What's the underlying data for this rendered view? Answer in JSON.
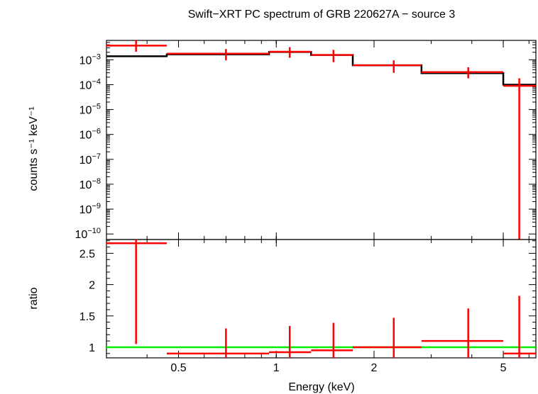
{
  "chart_data": [
    {
      "type": "scatter",
      "title": "Swift−XRT PC spectrum of GRB 220627A − source 3",
      "ylabel": "counts s⁻¹ keV⁻¹",
      "xlabel": "",
      "x_scale": "log",
      "y_scale": "log",
      "xlim": [
        0.3,
        6.3
      ],
      "ylim": [
        6e-11,
        0.006
      ],
      "y_ticks": [
        {
          "exp": -3,
          "label_base": "10",
          "label_exp": "−3"
        },
        {
          "exp": -4,
          "label_base": "10",
          "label_exp": "−4"
        },
        {
          "exp": -5,
          "label_base": "10",
          "label_exp": "−5"
        },
        {
          "exp": -6,
          "label_base": "10",
          "label_exp": "−6"
        },
        {
          "exp": -7,
          "label_base": "10",
          "label_exp": "−7"
        },
        {
          "exp": -8,
          "label_base": "10",
          "label_exp": "−8"
        },
        {
          "exp": -9,
          "label_base": "10",
          "label_exp": "−9"
        },
        {
          "exp": -10,
          "label_base": "10",
          "label_exp": "−10"
        }
      ],
      "series": [
        {
          "color": "#ff0000",
          "points": [
            {
              "x": 0.37,
              "xlo": 0.3,
              "xhi": 0.46,
              "y": 0.0037,
              "ylo": 0.0021,
              "yhi": 0.006
            },
            {
              "x": 0.7,
              "xlo": 0.46,
              "xhi": 0.95,
              "y": 0.00175,
              "ylo": 0.00095,
              "yhi": 0.0027
            },
            {
              "x": 1.1,
              "xlo": 0.95,
              "xhi": 1.28,
              "y": 0.0021,
              "ylo": 0.0012,
              "yhi": 0.0032
            },
            {
              "x": 1.5,
              "xlo": 1.28,
              "xhi": 1.72,
              "y": 0.00155,
              "ylo": 0.0008,
              "yhi": 0.0025
            },
            {
              "x": 2.3,
              "xlo": 1.72,
              "xhi": 2.8,
              "y": 0.0006,
              "ylo": 0.0003,
              "yhi": 0.00095
            },
            {
              "x": 3.9,
              "xlo": 2.8,
              "xhi": 5.0,
              "y": 0.00032,
              "ylo": 0.00018,
              "yhi": 0.0005
            },
            {
              "x": 5.6,
              "xlo": 5.0,
              "xhi": 6.3,
              "y": 9e-05,
              "ylo": 6e-11,
              "yhi": 0.00018
            }
          ]
        },
        {
          "color": "#000000",
          "steps": [
            {
              "xlo": 0.3,
              "xhi": 0.46,
              "y": 0.00138
            },
            {
              "xlo": 0.46,
              "xhi": 0.95,
              "y": 0.00165
            },
            {
              "xlo": 0.95,
              "xhi": 1.28,
              "y": 0.00205
            },
            {
              "xlo": 1.28,
              "xhi": 1.72,
              "y": 0.00155
            },
            {
              "xlo": 1.72,
              "xhi": 2.8,
              "y": 0.0006
            },
            {
              "xlo": 2.8,
              "xhi": 5.0,
              "y": 0.00029
            },
            {
              "xlo": 5.0,
              "xhi": 6.3,
              "y": 0.0001
            }
          ]
        }
      ]
    },
    {
      "type": "scatter",
      "title": "",
      "xlabel": "Energy (keV)",
      "ylabel": "ratio",
      "x_scale": "log",
      "y_scale": "linear",
      "xlim": [
        0.3,
        6.3
      ],
      "ylim": [
        0.83,
        2.72
      ],
      "y_ticks": [
        {
          "value": 1,
          "label": "1"
        },
        {
          "value": 1.5,
          "label": "1.5"
        },
        {
          "value": 2,
          "label": "2"
        },
        {
          "value": 2.5,
          "label": "2.5"
        }
      ],
      "x_ticks": [
        {
          "value": 0.5,
          "label": "0.5"
        },
        {
          "value": 1,
          "label": "1"
        },
        {
          "value": 2,
          "label": "2"
        },
        {
          "value": 5,
          "label": "5"
        }
      ],
      "reference_line": {
        "y": 1.0,
        "color": "#00ee00"
      },
      "series": [
        {
          "color": "#ff0000",
          "points": [
            {
              "x": 0.37,
              "xlo": 0.3,
              "xhi": 0.46,
              "y": 2.66,
              "ylo": 1.05,
              "yhi": 2.72
            },
            {
              "x": 0.7,
              "xlo": 0.46,
              "xhi": 0.95,
              "y": 0.9,
              "ylo": 0.83,
              "yhi": 1.3
            },
            {
              "x": 1.1,
              "xlo": 0.95,
              "xhi": 1.28,
              "y": 0.92,
              "ylo": 0.83,
              "yhi": 1.34
            },
            {
              "x": 1.5,
              "xlo": 1.28,
              "xhi": 1.72,
              "y": 0.95,
              "ylo": 0.83,
              "yhi": 1.39
            },
            {
              "x": 2.3,
              "xlo": 1.72,
              "xhi": 2.8,
              "y": 1.0,
              "ylo": 0.83,
              "yhi": 1.47
            },
            {
              "x": 3.9,
              "xlo": 2.8,
              "xhi": 5.0,
              "y": 1.1,
              "ylo": 0.83,
              "yhi": 1.62
            },
            {
              "x": 5.6,
              "xlo": 5.0,
              "xhi": 6.3,
              "y": 0.9,
              "ylo": 0.83,
              "yhi": 1.82
            }
          ]
        }
      ]
    }
  ]
}
